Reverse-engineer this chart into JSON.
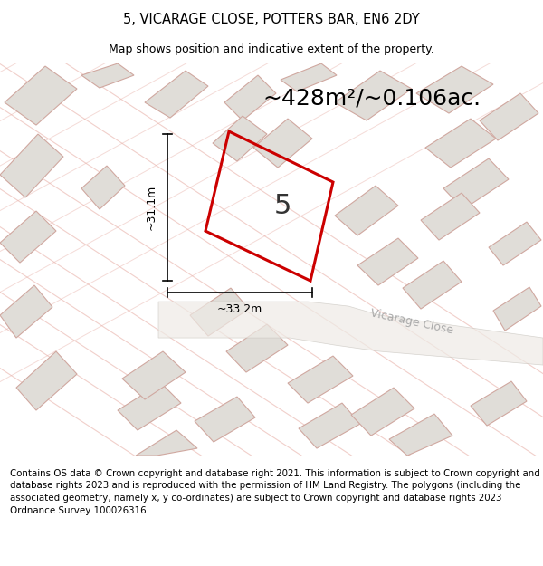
{
  "title": "5, VICARAGE CLOSE, POTTERS BAR, EN6 2DY",
  "subtitle": "Map shows position and indicative extent of the property.",
  "area_text": "~428m²/~0.106ac.",
  "house_number": "5",
  "dim_width": "~33.2m",
  "dim_height": "~31.1m",
  "street_label": "Vicarage Close",
  "footer": "Contains OS data © Crown copyright and database right 2021. This information is subject to Crown copyright and database rights 2023 and is reproduced with the permission of HM Land Registry. The polygons (including the associated geometry, namely x, y co-ordinates) are subject to Crown copyright and database rights 2023 Ordnance Survey 100026316.",
  "map_bg": "#f7f5f2",
  "building_fill": "#e0ddd8",
  "building_edge": "#d0a8a0",
  "red_color": "#cc0000",
  "line_color": "#e8b0a8",
  "footer_bg": "#ffffff",
  "title_fs": 10.5,
  "subtitle_fs": 9.0,
  "area_fs": 18,
  "number_fs": 22,
  "dim_fs": 9,
  "street_fs": 9
}
